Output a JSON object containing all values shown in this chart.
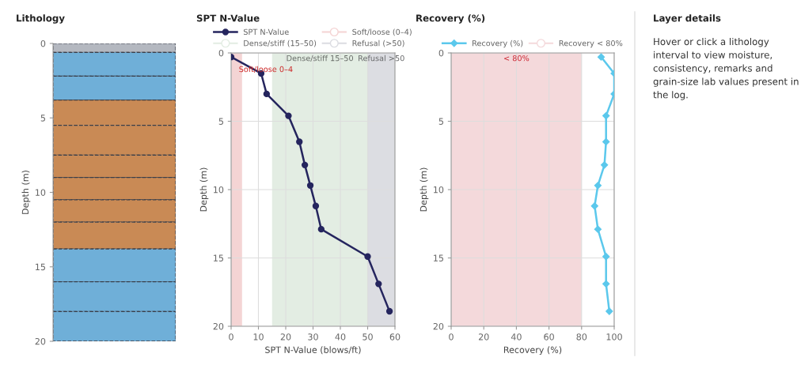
{
  "chart_data": [
    {
      "type": "bar",
      "title": "Lithology",
      "stacked": true,
      "categories": [
        null
      ],
      "ylabel": "Depth (m)",
      "ylim": [
        20,
        0
      ],
      "yticks": [
        0,
        5,
        10,
        15,
        20
      ],
      "tick_labels": "y",
      "grid": false,
      "series": [
        {
          "color": "#b4b8c0",
          "values": [
            0.6
          ]
        },
        {
          "color": "#6fafd8",
          "values": [
            1.6
          ]
        },
        {
          "color": "#6fafd8",
          "values": [
            1.6
          ]
        },
        {
          "color": "#c98a55",
          "values": [
            1.7
          ]
        },
        {
          "color": "#c98a55",
          "values": [
            2.0
          ]
        },
        {
          "color": "#c98a55",
          "values": [
            1.5
          ]
        },
        {
          "color": "#c98a55",
          "values": [
            1.5
          ]
        },
        {
          "color": "#c98a55",
          "values": [
            1.5
          ]
        },
        {
          "color": "#c98a55",
          "values": [
            1.8
          ]
        },
        {
          "color": "#6fafd8",
          "values": [
            2.2
          ]
        },
        {
          "color": "#6fafd8",
          "values": [
            2.0
          ]
        },
        {
          "color": "#6fafd8",
          "values": [
            2.0
          ]
        }
      ]
    },
    {
      "type": "line",
      "title": "SPT N-Value",
      "orientation": "horizontal",
      "xlabel": "SPT N-Value (blows/ft)",
      "ylabel": "Depth (m)",
      "xlim": [
        0,
        60
      ],
      "xticks": [
        0,
        10,
        20,
        30,
        40,
        50,
        60
      ],
      "ylim": [
        20,
        0
      ],
      "yticks": [
        0,
        5,
        10,
        15,
        20
      ],
      "grid": true,
      "legend": "top",
      "marker": "circle",
      "x": [
        0.3,
        1.5,
        3.0,
        4.6,
        6.5,
        8.2,
        9.7,
        11.2,
        12.9,
        14.9,
        16.9,
        18.9
      ],
      "series": [
        {
          "name": "SPT N-Value",
          "color": "#25255e",
          "values": [
            0,
            11,
            13,
            21,
            25,
            27,
            29,
            31,
            33,
            50,
            54,
            58
          ]
        }
      ],
      "bands": [
        {
          "axis": "x",
          "from": 0,
          "to": 4,
          "label": "Soft/loose (0–4)",
          "color": "#f4d4d4"
        },
        {
          "axis": "x",
          "from": 15,
          "to": 50,
          "label": "Dense/stiff (15–50)",
          "color": "#e3ede3"
        },
        {
          "axis": "x",
          "from": 50,
          "to": 60,
          "label": "Refusal (>50)",
          "color": "#dcdde2"
        }
      ],
      "annotations": [
        {
          "text": "Soft/loose 0–4",
          "x": 2,
          "y": 0
        },
        {
          "text": "Dense/stiff 15–50",
          "x": 32.5,
          "y": 0
        },
        {
          "text": "Refusal >50",
          "x": 55,
          "y": 0
        }
      ]
    },
    {
      "type": "line",
      "title": "Recovery (%)",
      "orientation": "horizontal",
      "xlabel": "Recovery (%)",
      "ylabel": "Depth (m)",
      "xlim": [
        0,
        100
      ],
      "xticks": [
        0,
        20,
        40,
        60,
        80,
        100
      ],
      "ylim": [
        20,
        0
      ],
      "yticks": [
        0,
        5,
        10,
        15,
        20
      ],
      "grid": true,
      "legend": "top",
      "marker": "diamond",
      "x": [
        0.3,
        1.5,
        3.0,
        4.6,
        6.5,
        8.2,
        9.7,
        11.2,
        12.9,
        14.9,
        16.9,
        18.9
      ],
      "series": [
        {
          "name": "Recovery (%)",
          "color": "#5bc8ec",
          "values": [
            92,
            100,
            100,
            95,
            95,
            94,
            90,
            88,
            90,
            95,
            95,
            97
          ]
        }
      ],
      "bands": [
        {
          "axis": "x",
          "from": 0,
          "to": 80,
          "label": "Recovery < 80%",
          "color": "#f4d9db"
        }
      ],
      "annotations": [
        {
          "text": "< 80%",
          "x": 40,
          "y": 0
        }
      ]
    },
    {
      "type": "other",
      "title": "Layer details",
      "annotations": [
        "Hover or click a lithology interval to view moisture, consistency, remarks and grain-size lab values present in the log."
      ]
    }
  ]
}
